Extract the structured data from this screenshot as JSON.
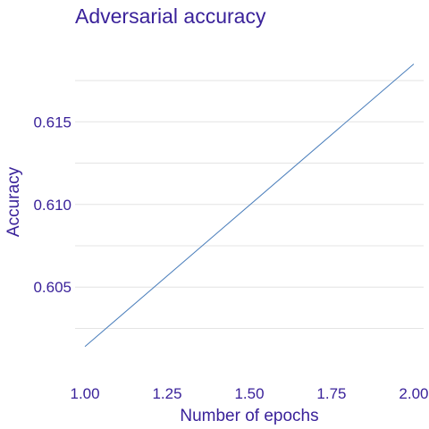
{
  "chart_data": {
    "type": "line",
    "title": "Adversarial accuracy",
    "xlabel": "Number of epochs",
    "ylabel": "Accuracy",
    "x": [
      1.0,
      2.0
    ],
    "series": [
      {
        "values": [
          0.6014,
          0.6185
        ],
        "color": "#4a7ebb"
      }
    ],
    "xlim": [
      0.97,
      2.03
    ],
    "ylim": [
      0.59955,
      0.6201
    ],
    "x_ticks": [
      1.0,
      1.25,
      1.5,
      1.75,
      2.0
    ],
    "x_tick_labels": [
      "1.00",
      "1.25",
      "1.50",
      "1.75",
      "2.00"
    ],
    "y_ticks": [
      0.605,
      0.61,
      0.615
    ],
    "y_tick_labels": [
      "0.605",
      "0.610",
      "0.615"
    ],
    "y_minor_grid": [
      0.6025,
      0.6075,
      0.6125,
      0.6175
    ],
    "grid": "horizontal",
    "legend": "none",
    "text_color": "#3a229a",
    "grid_color": "#e4e4e4"
  }
}
